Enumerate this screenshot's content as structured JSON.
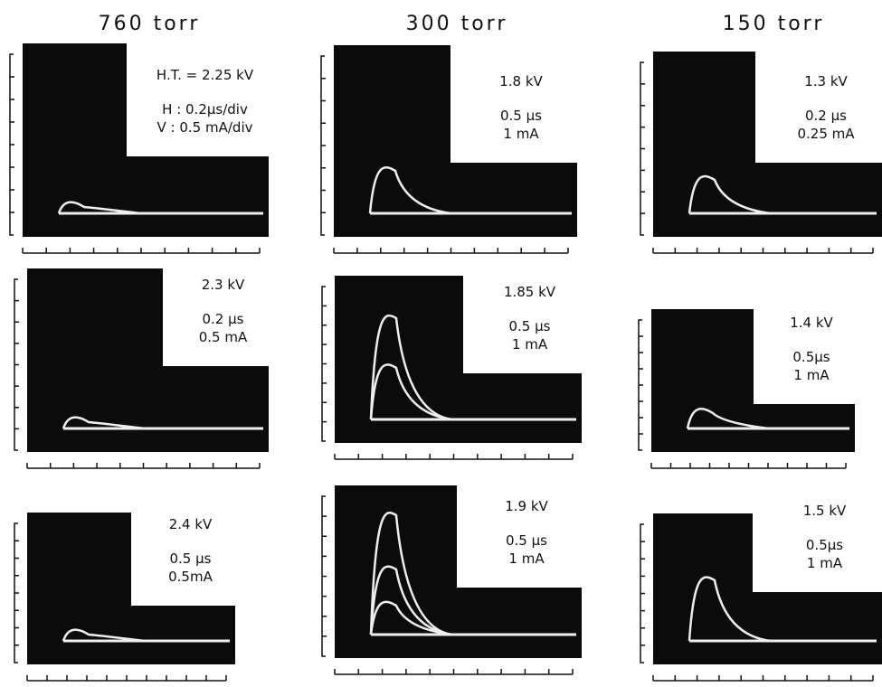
{
  "columns": [
    {
      "title": "760 torr",
      "panels": [
        {
          "lines": [
            "H.T. = 2.25 kV",
            "H  : 0.2µs/div",
            "V  : 0.5 mA/div"
          ]
        },
        {
          "lines": [
            "2.3 kV",
            "0.2 µs",
            "0.5 mA"
          ]
        },
        {
          "lines": [
            "2.4 kV",
            "0.5 µs",
            "0.5mA"
          ]
        }
      ]
    },
    {
      "title": "300 torr",
      "panels": [
        {
          "lines": [
            "1.8 kV",
            "0.5 µs",
            "1 mA"
          ]
        },
        {
          "lines": [
            "1.85 kV",
            "0.5 µs",
            "1 mA"
          ]
        },
        {
          "lines": [
            "1.9 kV",
            "0.5 µs",
            "1 mA"
          ]
        }
      ]
    },
    {
      "title": "150 torr",
      "panels": [
        {
          "lines": [
            "1.3 kV",
            "0.2 µs",
            "0.25 mA"
          ]
        },
        {
          "lines": [
            "1.4 kV",
            "0.5µs",
            "1 mA"
          ]
        },
        {
          "lines": [
            "1.5 kV",
            "0.5µs",
            "1 mA"
          ]
        }
      ]
    }
  ]
}
